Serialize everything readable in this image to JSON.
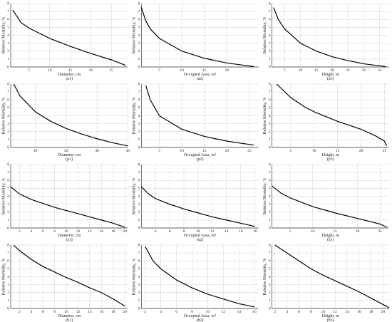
{
  "chart_data": [
    {
      "type": "line",
      "caption": "(a1)",
      "x_label": "Diameter, cm",
      "y_label": "Relative Mortality, %",
      "x": [
        1,
        3,
        5,
        10,
        15,
        20,
        25,
        28.5
      ],
      "values": [
        7.2,
        5.6,
        4.9,
        3.6,
        2.6,
        1.7,
        0.9,
        0.2
      ],
      "color": "#000000",
      "xlim": [
        0.5,
        29
      ],
      "xticks": [
        5,
        10,
        15,
        20,
        25
      ],
      "ylim": [
        0,
        8
      ],
      "yticks": [
        0,
        1,
        2,
        3,
        4,
        5,
        6,
        7,
        8
      ],
      "grid": true
    },
    {
      "type": "line",
      "caption": "(a2)",
      "x_label": "Occupied Area, m²",
      "y_label": "Relative Mortality, %",
      "x": [
        1,
        2,
        3,
        5,
        10,
        15,
        20,
        26
      ],
      "values": [
        7.5,
        5.8,
        4.8,
        3.6,
        2.0,
        1.1,
        0.5,
        0.05
      ],
      "color": "#000000",
      "xlim": [
        1,
        27
      ],
      "xticks": [
        5,
        10,
        15,
        20
      ],
      "ylim": [
        0,
        8
      ],
      "yticks": [
        0,
        1,
        2,
        3,
        4,
        5,
        6,
        7,
        8
      ],
      "grid": true
    },
    {
      "type": "line",
      "caption": "(a3)",
      "x_label": "Height, m",
      "y_label": "Relative Mortality, %",
      "x": [
        1.5,
        3,
        5,
        10,
        15,
        20,
        25,
        30,
        37
      ],
      "values": [
        7.5,
        6.0,
        4.8,
        3.0,
        2.0,
        1.3,
        0.8,
        0.4,
        0.05
      ],
      "color": "#000000",
      "xlim": [
        1,
        38
      ],
      "xticks": [
        5,
        10,
        15,
        20,
        25,
        30,
        35
      ],
      "ylim": [
        0,
        8
      ],
      "yticks": [
        0,
        1,
        2,
        3,
        4,
        5,
        6,
        7,
        8
      ],
      "grid": true
    },
    {
      "type": "line",
      "caption": "(p1)",
      "x_label": "Diameter, cm",
      "y_label": "Relative Mortality, %",
      "x": [
        3,
        5,
        10,
        15,
        20,
        25,
        30,
        35,
        40
      ],
      "values": [
        8,
        6.5,
        4.5,
        3.3,
        2.4,
        1.7,
        1.1,
        0.6,
        0.2
      ],
      "color": "#000000",
      "xlim": [
        2,
        40
      ],
      "xticks": [
        10,
        20,
        30,
        40
      ],
      "ylim": [
        0,
        8
      ],
      "yticks": [
        0,
        1,
        2,
        3,
        4,
        5,
        6,
        7,
        8
      ],
      "grid": true
    },
    {
      "type": "line",
      "caption": "(p2)",
      "x_label": "Occupied Area, m²",
      "y_label": "Relative Mortality, %",
      "x": [
        2,
        3,
        5,
        10,
        15,
        20,
        26
      ],
      "values": [
        7.8,
        6.0,
        4.0,
        2.3,
        1.4,
        0.8,
        0.3
      ],
      "color": "#000000",
      "xlim": [
        1,
        27
      ],
      "xticks": [
        5,
        10,
        15,
        20,
        25
      ],
      "ylim": [
        0,
        8
      ],
      "yticks": [
        0,
        1,
        2,
        3,
        4,
        5,
        6,
        7,
        8
      ],
      "grid": true
    },
    {
      "type": "line",
      "caption": "(p3)",
      "x_label": "Height, m",
      "y_label": "Relative Mortality, %",
      "x": [
        2,
        5,
        8,
        10,
        15,
        20,
        23,
        25,
        25.5
      ],
      "values": [
        8,
        6.3,
        5.1,
        4.5,
        3.3,
        2.3,
        1.5,
        0.8,
        0.2
      ],
      "color": "#000000",
      "xlim": [
        1,
        26
      ],
      "xticks": [
        5,
        10,
        15,
        20,
        25
      ],
      "ylim": [
        0,
        8
      ],
      "yticks": [
        0,
        1,
        2,
        3,
        4,
        5,
        6,
        7,
        8
      ],
      "grid": true
    },
    {
      "type": "line",
      "caption": "(s1)",
      "x_label": "Diameter, cm",
      "y_label": "Relative Mortality, %",
      "x": [
        0.5,
        2,
        4,
        6,
        8,
        10,
        12,
        14,
        16,
        18,
        20
      ],
      "values": [
        5.2,
        4.3,
        3.6,
        3.1,
        2.6,
        2.2,
        1.8,
        1.4,
        1.0,
        0.6,
        0.1
      ],
      "color": "#000000",
      "xlim": [
        0.5,
        20.5
      ],
      "xticks": [
        2,
        4,
        6,
        8,
        10,
        12,
        14,
        16,
        18,
        20
      ],
      "ylim": [
        0,
        8
      ],
      "yticks": [
        0,
        1,
        2,
        3,
        4,
        5,
        6,
        7,
        8
      ],
      "grid": true
    },
    {
      "type": "line",
      "caption": "(s2)",
      "x_label": "Occupied Area, m²",
      "y_label": "Relative Mortality, %",
      "x": [
        2,
        3,
        4,
        6,
        8,
        10,
        12,
        14,
        16,
        18
      ],
      "values": [
        5.2,
        4.3,
        3.7,
        3.0,
        2.4,
        1.9,
        1.4,
        1.0,
        0.6,
        0.2
      ],
      "color": "#000000",
      "xlim": [
        2,
        18.5
      ],
      "xticks": [
        4,
        6,
        8,
        10,
        12,
        14,
        16,
        18
      ],
      "ylim": [
        0,
        8
      ],
      "yticks": [
        0,
        1,
        2,
        3,
        4,
        5,
        6,
        7,
        8
      ],
      "grid": true
    },
    {
      "type": "line",
      "caption": "(s3)",
      "x_label": "Height, m",
      "y_label": "Relative Mortality, %",
      "x": [
        1,
        3,
        5,
        10,
        15,
        20,
        25,
        26.5
      ],
      "values": [
        5.3,
        4.4,
        3.8,
        2.7,
        1.9,
        1.2,
        0.5,
        0.1
      ],
      "color": "#000000",
      "xlim": [
        1,
        27
      ],
      "xticks": [
        5,
        10,
        15,
        20,
        25
      ],
      "ylim": [
        0,
        8
      ],
      "yticks": [
        0,
        1,
        2,
        3,
        4,
        5,
        6,
        7,
        8
      ],
      "grid": true
    },
    {
      "type": "line",
      "caption": "(b1)",
      "x_label": "Diameter, cm",
      "y_label": "Relative Mortality, %",
      "x": [
        1,
        2,
        4,
        6,
        8,
        10,
        12,
        14,
        16,
        18,
        20
      ],
      "values": [
        8,
        7.3,
        6.2,
        5.3,
        4.6,
        3.9,
        3.3,
        2.6,
        2.0,
        1.2,
        0.3
      ],
      "color": "#000000",
      "xlim": [
        0.5,
        20.5
      ],
      "xticks": [
        2,
        4,
        6,
        8,
        10,
        12,
        14,
        16,
        18,
        20
      ],
      "ylim": [
        0,
        8
      ],
      "yticks": [
        0,
        1,
        2,
        3,
        4,
        5,
        6,
        7,
        8
      ],
      "grid": true
    },
    {
      "type": "line",
      "caption": "(b2)",
      "x_label": "Occupied Area, m²",
      "y_label": "Relative Mortality, %",
      "x": [
        2,
        3,
        4,
        6,
        8,
        10,
        12,
        14,
        16
      ],
      "values": [
        7.8,
        6.0,
        5.0,
        3.6,
        2.6,
        1.8,
        1.2,
        0.6,
        0.2
      ],
      "color": "#000000",
      "xlim": [
        1.5,
        16.5
      ],
      "xticks": [
        2,
        4,
        6,
        8,
        10,
        12,
        14,
        16
      ],
      "ylim": [
        0,
        8
      ],
      "yticks": [
        0,
        1,
        2,
        3,
        4,
        5,
        6,
        7,
        8
      ],
      "grid": true
    },
    {
      "type": "line",
      "caption": "(b3)",
      "x_label": "Height, m",
      "y_label": "Relative Mortality, %",
      "x": [
        2,
        4,
        6,
        8,
        10,
        12,
        14,
        16,
        18,
        20,
        21
      ],
      "values": [
        8,
        7.0,
        6.0,
        5.0,
        4.2,
        3.5,
        2.8,
        2.1,
        1.3,
        0.5,
        0.1
      ],
      "color": "#000000",
      "xlim": [
        1.5,
        21
      ],
      "xticks": [
        2,
        4,
        6,
        8,
        10,
        12,
        14,
        16,
        18,
        20
      ],
      "ylim": [
        0,
        8
      ],
      "yticks": [
        0,
        1,
        2,
        3,
        4,
        5,
        6,
        7,
        8
      ],
      "grid": true
    }
  ]
}
